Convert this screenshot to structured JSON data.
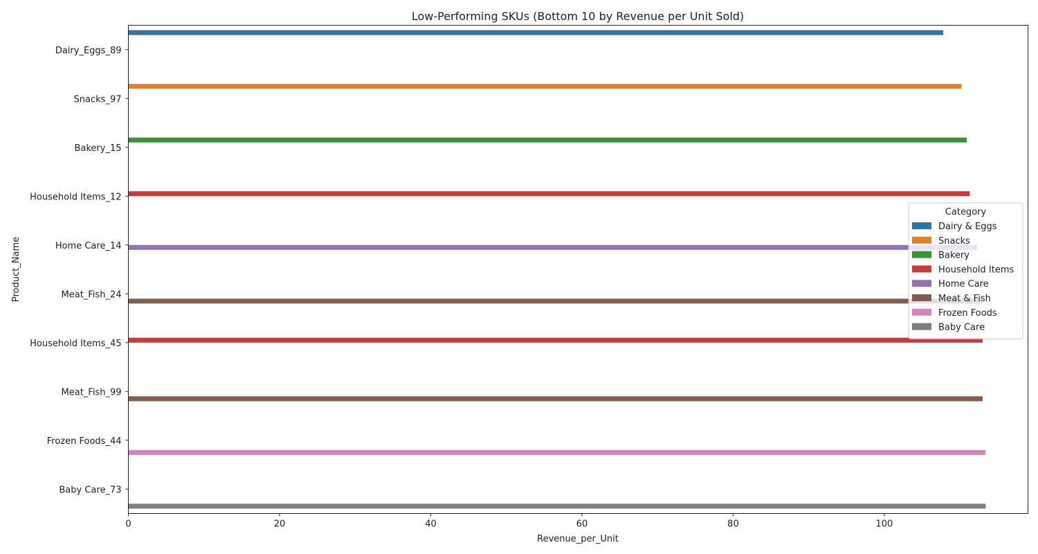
{
  "chart_data": {
    "type": "bar",
    "orientation": "horizontal",
    "title": "Low-Performing SKUs (Bottom 10 by Revenue per Unit Sold)",
    "xlabel": "Revenue_per_Unit",
    "ylabel": "Product_Name",
    "xlim": [
      0,
      119
    ],
    "x_ticks": [
      0,
      20,
      40,
      60,
      80,
      100
    ],
    "grid": false,
    "legend": {
      "title": "Category",
      "position": "right"
    },
    "categories": [
      "Dairy_Eggs_89",
      "Snacks_97",
      "Bakery_15",
      "Household Items_12",
      "Home Care_14",
      "Meat_Fish_24",
      "Household Items_45",
      "Meat_Fish_99",
      "Frozen Foods_44",
      "Baby Care_73"
    ],
    "series": [
      {
        "name": "Dairy & Eggs",
        "color": "#3274a1",
        "values": [
          107.8,
          null,
          null,
          null,
          null,
          null,
          null,
          null,
          null,
          null
        ]
      },
      {
        "name": "Snacks",
        "color": "#e1812c",
        "values": [
          null,
          110.2,
          null,
          null,
          null,
          null,
          null,
          null,
          null,
          null
        ]
      },
      {
        "name": "Bakery",
        "color": "#3a923a",
        "values": [
          null,
          null,
          110.9,
          null,
          null,
          null,
          null,
          null,
          null,
          null
        ]
      },
      {
        "name": "Household Items",
        "color": "#c03d3e",
        "values": [
          null,
          null,
          null,
          111.3,
          null,
          null,
          113.0,
          null,
          null,
          null
        ]
      },
      {
        "name": "Home Care",
        "color": "#9372b2",
        "values": [
          null,
          null,
          null,
          null,
          112.3,
          null,
          null,
          null,
          null,
          null
        ]
      },
      {
        "name": "Meat & Fish",
        "color": "#845b53",
        "values": [
          null,
          null,
          null,
          null,
          null,
          112.9,
          null,
          113.0,
          null,
          null
        ]
      },
      {
        "name": "Frozen Foods",
        "color": "#d684bd",
        "values": [
          null,
          null,
          null,
          null,
          null,
          null,
          null,
          null,
          113.4,
          null
        ]
      },
      {
        "name": "Baby Care",
        "color": "#7f7f7f",
        "values": [
          null,
          null,
          null,
          null,
          null,
          null,
          null,
          null,
          null,
          113.4
        ]
      }
    ]
  }
}
